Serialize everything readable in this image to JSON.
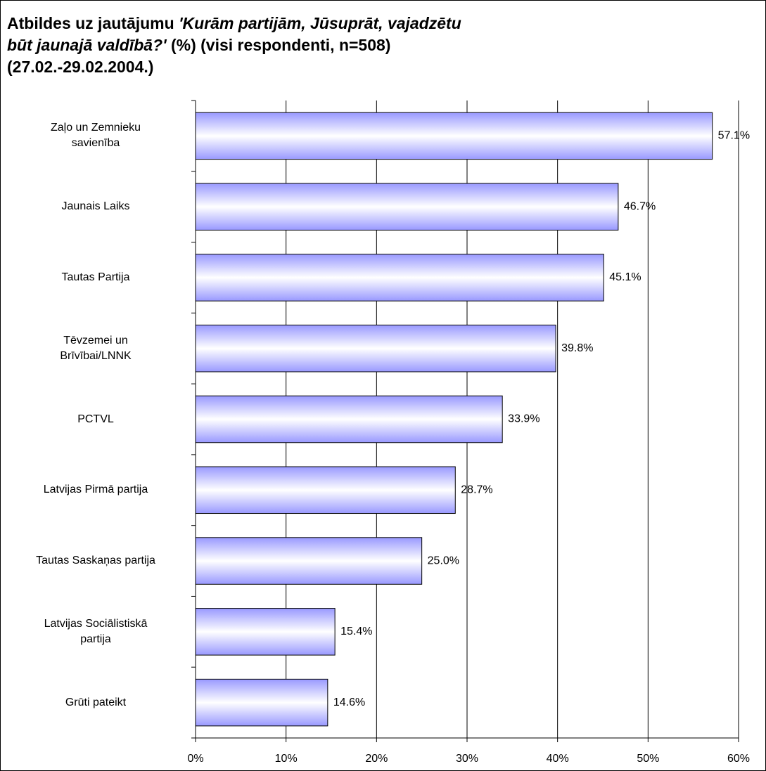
{
  "chart_data": {
    "type": "bar",
    "orientation": "horizontal",
    "title_lines": [
      [
        {
          "text": "Atbildes uz jautājumu ",
          "italic": false
        },
        {
          "text": "'Kurām partijām, Jūsuprāt, vajadzētu",
          "italic": true
        }
      ],
      [
        {
          "text": "būt jaunajā valdībā?'",
          "italic": true
        },
        {
          "text": " (%) (visi respondenti, n=508)",
          "italic": false
        }
      ],
      [
        {
          "text": "(27.02.-29.02.2004.)",
          "italic": false
        }
      ]
    ],
    "categories": [
      "Zaļo un Zemnieku\nsavienība",
      "Jaunais Laiks",
      "Tautas Partija",
      "Tēvzemei un\nBrīvībai/LNNK",
      "PCTVL",
      "Latvijas Pirmā partija",
      "Tautas Saskaņas partija",
      "Latvijas Sociālistiskā\npartija",
      "Grūti pateikt"
    ],
    "values": [
      57.1,
      46.7,
      45.1,
      39.8,
      33.9,
      28.7,
      25.0,
      15.4,
      14.6
    ],
    "value_labels": [
      "57.1%",
      "46.7%",
      "45.1%",
      "39.8%",
      "33.9%",
      "28.7%",
      "25.0%",
      "15.4%",
      "14.6%"
    ],
    "color": "#9999ff",
    "xlim": [
      0,
      60
    ],
    "xticks": [
      {
        "value": 0,
        "label": "0%"
      },
      {
        "value": 10,
        "label": "10%"
      },
      {
        "value": 20,
        "label": "20%"
      },
      {
        "value": 30,
        "label": "30%"
      },
      {
        "value": 40,
        "label": "40%"
      },
      {
        "value": 50,
        "label": "50%"
      },
      {
        "value": 60,
        "label": "60%"
      }
    ],
    "grid": true
  }
}
